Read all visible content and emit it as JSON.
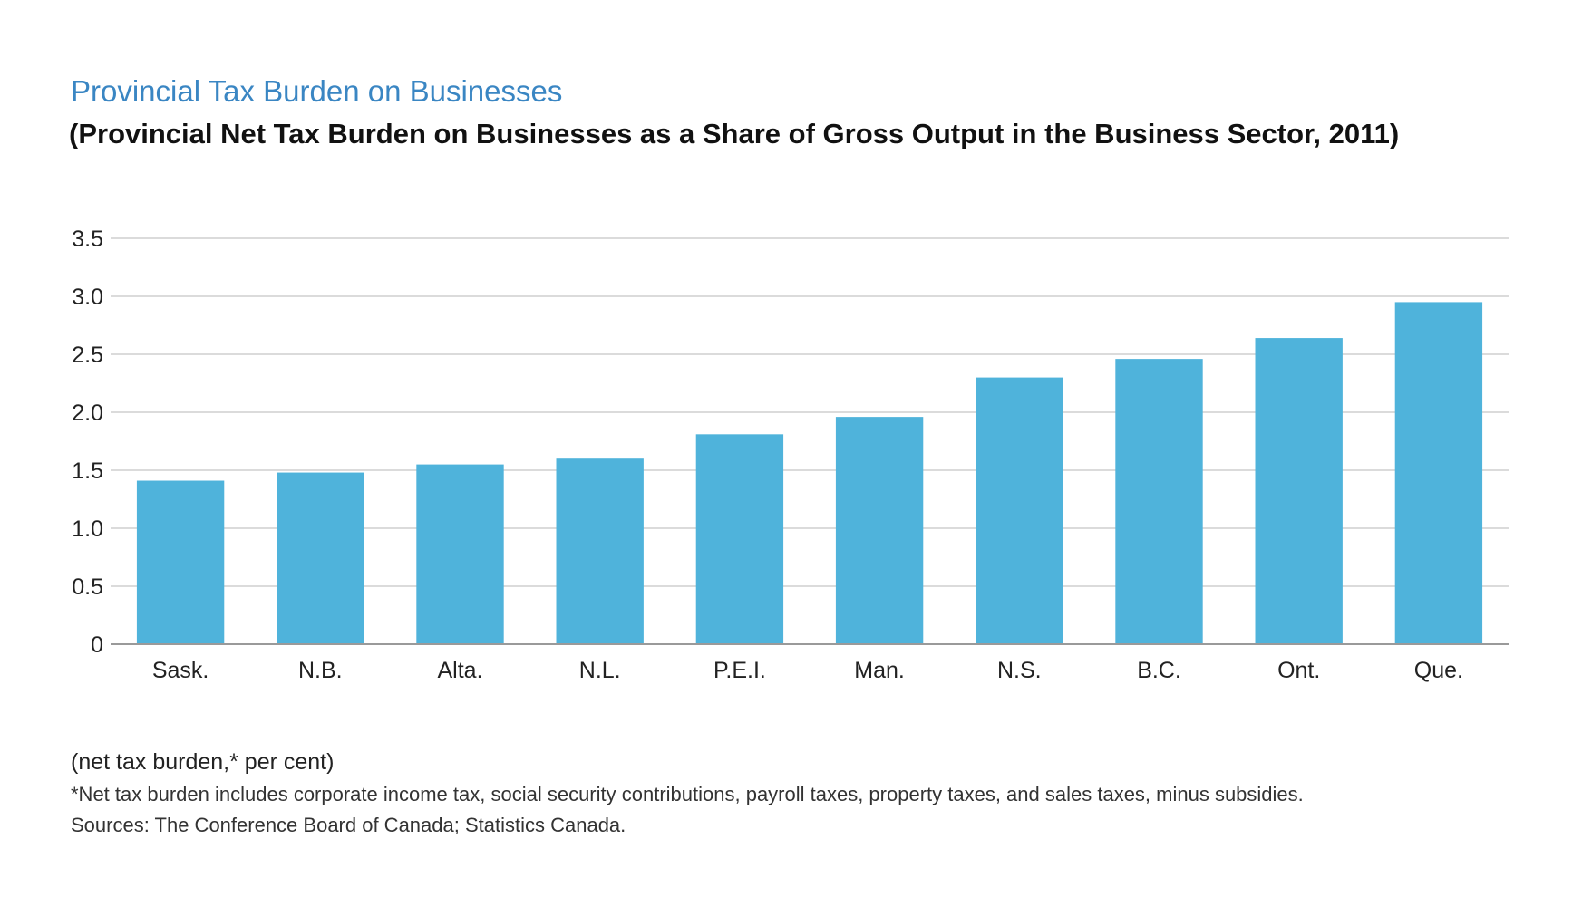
{
  "chart_data": {
    "type": "bar",
    "title": "Provincial Tax Burden on Businesses",
    "subtitle": "(Provincial Net Tax Burden on Businesses as a Share of Gross Output in the Business Sector, 2011)",
    "categories": [
      "Sask.",
      "N.B.",
      "Alta.",
      "N.L.",
      "P.E.I.",
      "Man.",
      "N.S.",
      "B.C.",
      "Ont.",
      "Que."
    ],
    "values": [
      1.41,
      1.48,
      1.55,
      1.6,
      1.81,
      1.96,
      2.3,
      2.46,
      2.64,
      2.95
    ],
    "yticks": [
      "0",
      "0.5",
      "1.0",
      "1.5",
      "2.0",
      "2.5",
      "3.0",
      "3.5"
    ],
    "ylim": [
      0,
      3.5
    ],
    "ylabel": "(net tax burden,* per cent)",
    "xlabel": "",
    "grid": true,
    "bar_color": "#4fb3db"
  },
  "notes": {
    "footnote": "*Net tax burden includes corporate income tax, social security contributions, payroll taxes, property taxes, and sales taxes, minus subsidies.",
    "sources": "Sources: The Conference Board of Canada; Statistics Canada."
  }
}
